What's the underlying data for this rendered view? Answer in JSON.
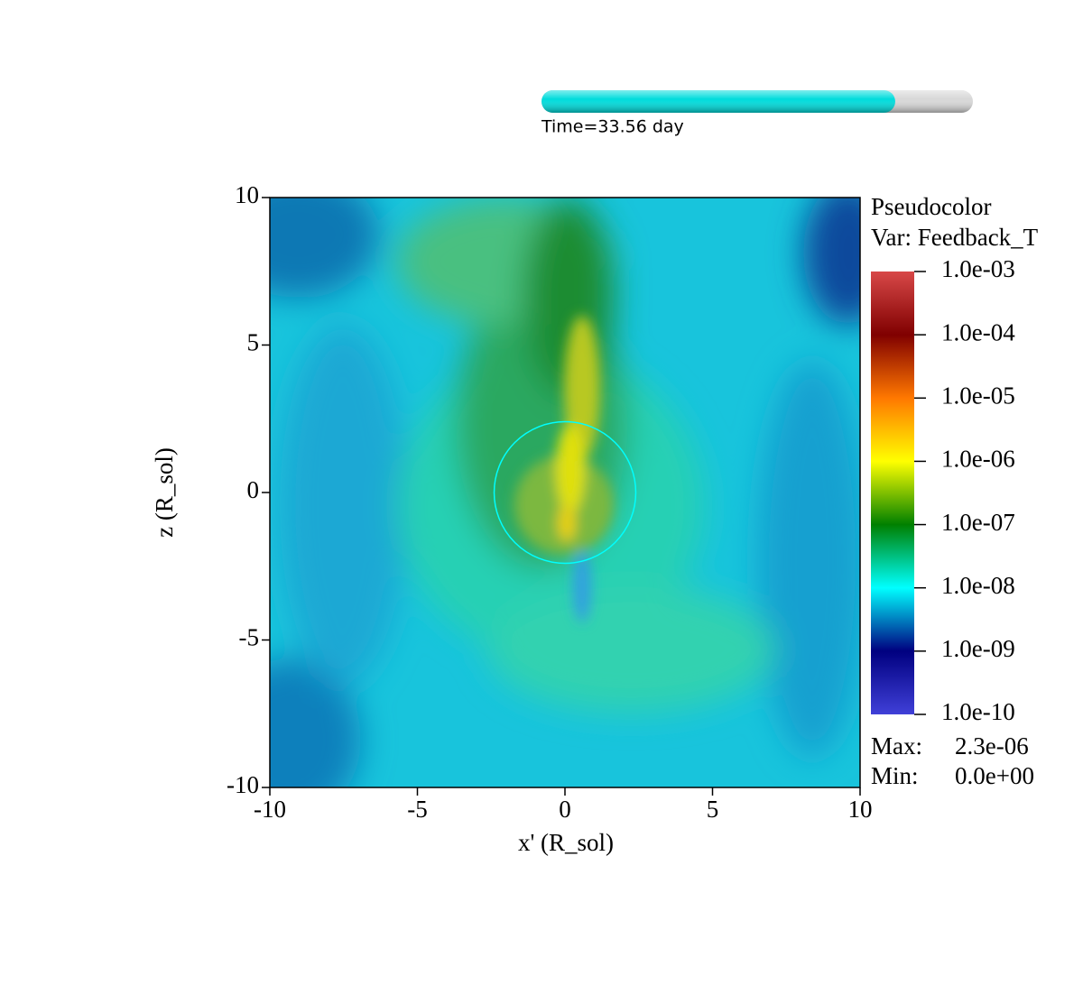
{
  "time_slider": {
    "label": "Time=33.56 day",
    "progress": 0.82,
    "color": "#00dcdc"
  },
  "chart_data": {
    "type": "pseudocolor",
    "xlabel": "x' (R_sol)",
    "ylabel": "z (R_sol)",
    "xlim": [
      -10,
      10
    ],
    "ylim": [
      -10,
      10
    ],
    "xticks": [
      -10,
      -5,
      0,
      5,
      10
    ],
    "yticks": [
      -10,
      -5,
      0,
      5,
      10
    ],
    "circle": {
      "cx": 0,
      "cy": 0,
      "r": 2.4,
      "color": "#00ffff"
    },
    "colorbar": {
      "title": "Pseudocolor",
      "var": "Var: Feedback_T",
      "scale": "log",
      "lim": [
        1e-10,
        0.001
      ],
      "ticks": [
        {
          "value": 1e-10,
          "label": "1.0e-10"
        },
        {
          "value": 1e-09,
          "label": "1.0e-09"
        },
        {
          "value": 1e-08,
          "label": "1.0e-08"
        },
        {
          "value": 1e-07,
          "label": "1.0e-07"
        },
        {
          "value": 1e-06,
          "label": "1.0e-06"
        },
        {
          "value": 1e-05,
          "label": "1.0e-05"
        },
        {
          "value": 0.0001,
          "label": "1.0e-04"
        },
        {
          "value": 0.001,
          "label": "1.0e-03"
        }
      ],
      "colors": [
        "#4040d8",
        "#000080",
        "#00ffff",
        "#008000",
        "#ffff00",
        "#ff7800",
        "#800000",
        "#d84848"
      ]
    },
    "max_label": "Max:",
    "max": "2.3e-06",
    "min_label": "Min:",
    "min": "0.0e+00"
  }
}
